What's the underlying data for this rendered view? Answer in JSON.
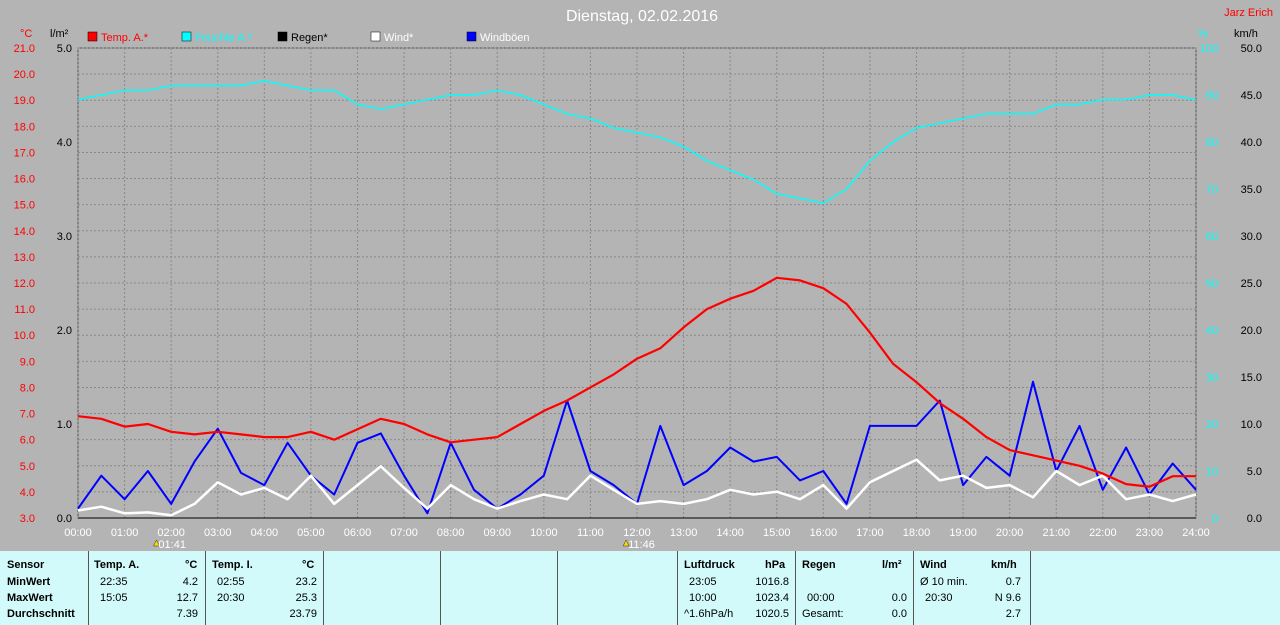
{
  "title": "Dienstag, 02.02.2016",
  "author": "Jarz Erich",
  "axes": {
    "left_temp_unit": "°C",
    "left_rain_unit": "l/m²",
    "right_hum_unit": "%",
    "right_wind_unit": "km/h",
    "temp_ticks": [
      "3.0",
      "4.0",
      "5.0",
      "6.0",
      "7.0",
      "8.0",
      "9.0",
      "10.0",
      "11.0",
      "12.0",
      "13.0",
      "14.0",
      "15.0",
      "16.0",
      "17.0",
      "18.0",
      "19.0",
      "20.0",
      "21.0"
    ],
    "rain_ticks": [
      "0.0",
      "1.0",
      "2.0",
      "3.0",
      "4.0",
      "5.0"
    ],
    "hum_ticks": [
      "0",
      "10",
      "20",
      "30",
      "40",
      "50",
      "60",
      "70",
      "80",
      "90",
      "100"
    ],
    "wind_ticks": [
      "0.0",
      "5.0",
      "10.0",
      "15.0",
      "20.0",
      "25.0",
      "30.0",
      "35.0",
      "40.0",
      "45.0",
      "50.0"
    ],
    "x_ticks": [
      "00:00",
      "01:00",
      "02:00",
      "03:00",
      "04:00",
      "05:00",
      "06:00",
      "07:00",
      "08:00",
      "09:00",
      "10:00",
      "11:00",
      "12:00",
      "13:00",
      "14:00",
      "15:00",
      "16:00",
      "17:00",
      "18:00",
      "19:00",
      "20:00",
      "21:00",
      "22:00",
      "23:00",
      "24:00"
    ]
  },
  "markers": [
    "01:41",
    "11:46"
  ],
  "legend": [
    {
      "label": "Temp. A.*",
      "color": "#ff0000"
    },
    {
      "label": "Feuchte A.*",
      "color": "#00ffff"
    },
    {
      "label": "Regen*",
      "color": "#000000"
    },
    {
      "label": "Wind*",
      "color": "#ffffff"
    },
    {
      "label": "Windböen",
      "color": "#0000ff"
    }
  ],
  "chart_data": {
    "type": "line",
    "title": "Dienstag, 02.02.2016",
    "x_range": [
      0,
      24
    ],
    "series": [
      {
        "name": "Temp. A.*",
        "color": "#ff0000",
        "axis": "temp",
        "ylim": [
          3,
          21
        ],
        "x": [
          0,
          0.5,
          1,
          1.5,
          2,
          2.5,
          3,
          3.5,
          4,
          4.5,
          5,
          5.5,
          6,
          6.5,
          7,
          7.5,
          8,
          8.5,
          9,
          9.5,
          10,
          10.5,
          11,
          11.5,
          12,
          12.5,
          13,
          13.5,
          14,
          14.5,
          15,
          15.5,
          16,
          16.5,
          17,
          17.5,
          18,
          18.5,
          19,
          19.5,
          20,
          20.5,
          21,
          21.5,
          22,
          22.5,
          23,
          23.5,
          24
        ],
        "y": [
          6.9,
          6.8,
          6.5,
          6.6,
          6.3,
          6.2,
          6.3,
          6.2,
          6.1,
          6.1,
          6.3,
          6.0,
          6.4,
          6.8,
          6.6,
          6.2,
          5.9,
          6.0,
          6.1,
          6.6,
          7.1,
          7.5,
          8.0,
          8.5,
          9.1,
          9.5,
          10.3,
          11.0,
          11.4,
          11.7,
          12.2,
          12.1,
          11.8,
          11.2,
          10.1,
          8.9,
          8.2,
          7.4,
          6.8,
          6.1,
          5.6,
          5.4,
          5.2,
          5.0,
          4.7,
          4.3,
          4.2,
          4.6,
          4.6
        ]
      },
      {
        "name": "Feuchte A.*",
        "color": "#00ffff",
        "axis": "hum",
        "ylim": [
          0,
          100
        ],
        "x": [
          0,
          0.5,
          1,
          1.5,
          2,
          2.5,
          3,
          3.5,
          4,
          4.5,
          5,
          5.5,
          6,
          6.5,
          7,
          7.5,
          8,
          8.5,
          9,
          9.5,
          10,
          10.5,
          11,
          11.5,
          12,
          12.5,
          13,
          13.5,
          14,
          14.5,
          15,
          15.5,
          16,
          16.5,
          17,
          17.5,
          18,
          18.5,
          19,
          19.5,
          20,
          20.5,
          21,
          21.5,
          22,
          22.5,
          23,
          23.5,
          24
        ],
        "y": [
          89,
          90,
          91,
          91,
          92,
          92,
          92,
          92,
          93,
          92,
          91,
          91,
          88,
          87,
          88,
          89,
          90,
          90,
          91,
          90,
          88,
          86,
          85,
          83,
          82,
          81,
          79,
          76,
          74,
          72,
          69,
          68,
          67,
          70,
          76,
          80,
          83,
          84,
          85,
          86,
          86,
          86,
          88,
          88,
          89,
          89,
          90,
          90,
          89
        ]
      },
      {
        "name": "Regen*",
        "color": "#000000",
        "axis": "rain",
        "ylim": [
          0,
          5
        ],
        "x": [
          0,
          24
        ],
        "y": [
          0,
          0
        ]
      },
      {
        "name": "Wind*",
        "color": "#ffffff",
        "axis": "wind",
        "ylim": [
          0,
          50
        ],
        "x": [
          0,
          0.5,
          1,
          1.5,
          2,
          2.5,
          3,
          3.5,
          4,
          4.5,
          5,
          5.5,
          6,
          6.5,
          7,
          7.5,
          8,
          8.5,
          9,
          9.5,
          10,
          10.5,
          11,
          11.5,
          12,
          12.5,
          13,
          13.5,
          14,
          14.5,
          15,
          15.5,
          16,
          16.5,
          17,
          17.5,
          18,
          18.5,
          19,
          19.5,
          20,
          20.5,
          21,
          21.5,
          22,
          22.5,
          23,
          23.5,
          24
        ],
        "y": [
          0.8,
          1.2,
          0.5,
          0.6,
          0.3,
          1.5,
          3.8,
          2.5,
          3.2,
          2.0,
          4.5,
          1.5,
          3.5,
          5.5,
          3.2,
          1.0,
          3.5,
          2.0,
          1.0,
          1.8,
          2.5,
          2.0,
          4.5,
          3.0,
          1.5,
          1.8,
          1.5,
          2.0,
          3.0,
          2.5,
          2.8,
          2.0,
          3.5,
          1.0,
          3.8,
          5.0,
          6.2,
          4.0,
          4.5,
          3.2,
          3.5,
          2.2,
          5.0,
          3.5,
          4.5,
          2.0,
          2.5,
          1.8,
          2.5
        ]
      },
      {
        "name": "Windböen",
        "color": "#0000ff",
        "axis": "wind",
        "ylim": [
          0,
          50
        ],
        "x": [
          0,
          0.5,
          1,
          1.5,
          2,
          2.5,
          3,
          3.5,
          4,
          4.5,
          5,
          5.5,
          6,
          6.5,
          7,
          7.5,
          8,
          8.5,
          9,
          9.5,
          10,
          10.5,
          11,
          11.5,
          12,
          12.5,
          13,
          13.5,
          14,
          14.5,
          15,
          15.5,
          16,
          16.5,
          17,
          17.5,
          18,
          18.5,
          19,
          19.5,
          20,
          20.5,
          21,
          21.5,
          22,
          22.5,
          23,
          23.5,
          24
        ],
        "y": [
          1.0,
          4.5,
          2.0,
          5.0,
          1.5,
          6.0,
          9.5,
          4.8,
          3.5,
          8.0,
          4.5,
          2.5,
          8.0,
          9.0,
          4.5,
          0.5,
          8.0,
          3.0,
          1.0,
          2.5,
          4.5,
          12.5,
          5.0,
          3.5,
          1.5,
          9.8,
          3.5,
          5.0,
          7.5,
          6.0,
          6.5,
          4.0,
          5.0,
          1.5,
          9.8,
          9.8,
          9.8,
          12.5,
          3.5,
          6.5,
          4.5,
          14.5,
          5.0,
          9.8,
          3.0,
          7.5,
          2.5,
          5.8,
          3.0
        ]
      }
    ]
  },
  "table": {
    "sensor": {
      "header": "Sensor",
      "rows": [
        "MinWert",
        "MaxWert",
        "Durchschnitt"
      ]
    },
    "temp_a": {
      "header": "Temp. A.",
      "unit": "°C",
      "min_time": "22:35",
      "min": "4.2",
      "max_time": "15:05",
      "max": "12.7",
      "avg": "7.39"
    },
    "temp_i": {
      "header": "Temp. I.",
      "unit": "°C",
      "min_time": "02:55",
      "min": "23.2",
      "max_time": "20:30",
      "max": "25.3",
      "avg": "23.79"
    },
    "pressure": {
      "header": "Luftdruck",
      "unit": "hPa",
      "r1_label": "23:05",
      "r1": "1016.8",
      "r2_label": "10:00",
      "r2": "1023.4",
      "r3_label": "^1.6hPa/h",
      "r3": "1020.5"
    },
    "rain": {
      "header": "Regen",
      "unit": "l/m²",
      "r2_label": "00:00",
      "r2": "0.0",
      "r3_label": "Gesamt:",
      "r3": "0.0"
    },
    "wind": {
      "header": "Wind",
      "unit": "km/h",
      "r1_label": "Ø 10 min.",
      "r1": "0.7",
      "r2_label": "20:30",
      "r2": "N 9.6",
      "r3": "2.7"
    }
  }
}
